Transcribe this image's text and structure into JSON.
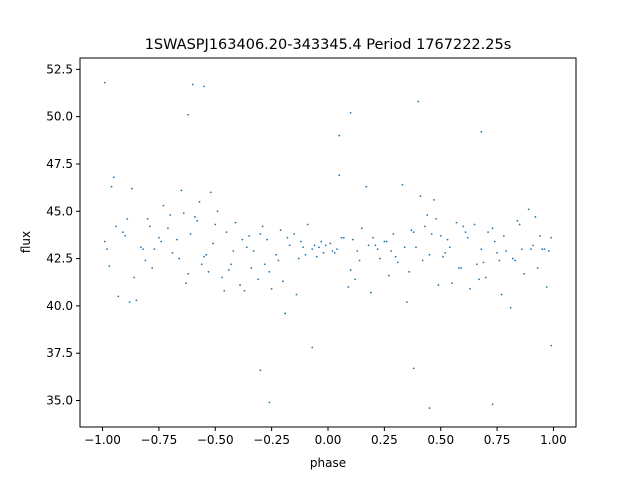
{
  "chart_data": {
    "type": "scatter",
    "title": "1SWASPJ163406.20-343345.4 Period 1767222.25s",
    "xlabel": "phase",
    "ylabel": "flux",
    "xlim": [
      -1.1,
      1.1
    ],
    "ylim": [
      33.6,
      53.1
    ],
    "x_ticks": [
      -1.0,
      -0.75,
      -0.5,
      -0.25,
      0.0,
      0.25,
      0.5,
      0.75,
      1.0
    ],
    "x_tick_labels": [
      "−1.00",
      "−0.75",
      "−0.50",
      "−0.25",
      "0.00",
      "0.25",
      "0.50",
      "0.75",
      "1.00"
    ],
    "y_ticks": [
      35.0,
      37.5,
      40.0,
      42.5,
      45.0,
      47.5,
      50.0,
      52.5
    ],
    "y_tick_labels": [
      "35.0",
      "37.5",
      "40.0",
      "42.5",
      "45.0",
      "47.5",
      "50.0",
      "52.5"
    ],
    "grid": false,
    "legend": "none",
    "point_color": "#1f77b4",
    "series": [
      {
        "x": [
          -0.99,
          -0.97,
          -0.95,
          -0.93,
          -0.91,
          -0.89,
          -0.87,
          -0.85,
          -0.83,
          -0.81,
          -0.79,
          -0.77,
          -0.75,
          -0.73,
          -0.71,
          -0.69,
          -0.67,
          -0.65,
          -0.63,
          -0.61,
          -0.59,
          -0.57,
          -0.55,
          -0.53,
          -0.51,
          -0.49,
          -0.47,
          -0.45,
          -0.43,
          -0.41,
          -0.39,
          -0.37,
          -0.35,
          -0.33,
          -0.31,
          -0.29,
          -0.27,
          -0.25,
          -0.23,
          -0.21,
          -0.19,
          -0.17,
          -0.15,
          -0.13,
          -0.11,
          -0.09,
          -0.07,
          -0.05,
          -0.03,
          -0.01,
          0.01,
          0.03,
          0.05,
          0.07,
          0.09,
          0.11,
          0.13,
          0.15,
          0.17,
          0.19,
          0.21,
          0.23,
          0.25,
          0.27,
          0.29,
          0.31,
          0.33,
          0.35,
          0.37,
          0.39,
          0.41,
          0.43,
          0.45,
          0.47,
          0.49,
          0.51,
          0.53,
          0.55,
          0.57,
          0.59,
          0.61,
          0.63,
          0.65,
          0.67,
          0.69,
          0.71,
          0.73,
          0.75,
          0.77,
          0.79,
          0.81,
          0.83,
          0.85,
          0.87,
          0.89,
          0.91,
          0.93,
          0.95,
          0.97,
          0.99,
          -0.98,
          -0.94,
          -0.9,
          -0.86,
          -0.82,
          -0.78,
          -0.74,
          -0.7,
          -0.66,
          -0.62,
          -0.58,
          -0.54,
          -0.5,
          -0.46,
          -0.42,
          -0.38,
          -0.34,
          -0.3,
          -0.26,
          -0.22,
          -0.18,
          -0.14,
          -0.1,
          -0.06,
          -0.02,
          0.02,
          0.06,
          0.1,
          0.14,
          0.18,
          0.22,
          0.26,
          0.3,
          0.34,
          0.38,
          0.42,
          0.46,
          0.5,
          0.54,
          0.58,
          0.62,
          0.66,
          0.7,
          0.74,
          0.78,
          0.82,
          0.86,
          0.9,
          0.94,
          0.98,
          -0.96,
          -0.88,
          -0.8,
          -0.64,
          -0.56,
          -0.52,
          -0.44,
          -0.36,
          -0.28,
          -0.2,
          -0.12,
          -0.04,
          0.04,
          0.12,
          0.2,
          0.28,
          0.36,
          0.44,
          0.48,
          0.52,
          0.6,
          0.68,
          0.76,
          0.84,
          0.92,
          0.96,
          -0.6,
          -0.55,
          -0.3,
          -0.26,
          0.05,
          0.4,
          0.45,
          0.68,
          0.73,
          -0.99,
          0.99,
          -0.07,
          0.1,
          -0.62,
          0.38
        ],
        "y": [
          43.4,
          42.1,
          46.8,
          40.5,
          43.9,
          44.6,
          46.2,
          40.3,
          43.1,
          42.4,
          44.2,
          43.0,
          43.6,
          45.3,
          44.1,
          42.8,
          43.5,
          46.1,
          41.2,
          43.8,
          44.7,
          45.5,
          42.6,
          41.8,
          43.3,
          45.0,
          41.5,
          43.9,
          42.2,
          44.4,
          41.1,
          40.8,
          43.7,
          42.9,
          41.4,
          44.2,
          43.5,
          40.9,
          42.7,
          44.0,
          39.6,
          43.2,
          43.8,
          42.5,
          43.1,
          44.3,
          43.0,
          42.6,
          43.4,
          43.2,
          43.3,
          42.8,
          46.9,
          43.6,
          41.0,
          43.5,
          42.9,
          44.1,
          46.3,
          40.7,
          43.2,
          42.5,
          43.4,
          41.6,
          43.8,
          42.3,
          46.4,
          40.2,
          44.0,
          43.1,
          45.8,
          44.2,
          42.7,
          45.6,
          41.1,
          42.6,
          43.5,
          41.2,
          44.4,
          42.0,
          43.9,
          40.9,
          44.3,
          41.4,
          42.3,
          43.9,
          44.1,
          42.8,
          40.6,
          42.9,
          39.9,
          42.4,
          44.3,
          41.7,
          45.1,
          43.2,
          42.0,
          43.0,
          41.0,
          43.6,
          43.0,
          44.2,
          43.7,
          41.5,
          43.0,
          42.0,
          43.4,
          44.8,
          42.5,
          41.7,
          44.5,
          42.7,
          44.3,
          40.8,
          42.9,
          43.5,
          42.0,
          43.8,
          41.8,
          42.4,
          43.6,
          40.6,
          42.7,
          43.2,
          42.8,
          42.9,
          43.6,
          41.9,
          42.4,
          43.2,
          43.0,
          43.4,
          42.6,
          43.1,
          43.9,
          42.4,
          43.8,
          43.7,
          43.1,
          42.0,
          43.6,
          42.2,
          41.5,
          43.4,
          43.7,
          42.5,
          43.0,
          43.0,
          43.7,
          42.9,
          46.3,
          40.2,
          44.6,
          44.9,
          42.2,
          46.0,
          41.9,
          43.1,
          42.2,
          41.3,
          43.4,
          43.1,
          43.0,
          41.4,
          43.6,
          42.9,
          41.8,
          44.8,
          44.6,
          42.8,
          44.2,
          43.0,
          42.4,
          44.5,
          44.7,
          43.0,
          51.7,
          51.6,
          36.6,
          34.9,
          49.0,
          50.8,
          34.6,
          49.2,
          34.8,
          51.8,
          37.9,
          37.8,
          50.2,
          50.1,
          36.7
        ]
      }
    ]
  }
}
